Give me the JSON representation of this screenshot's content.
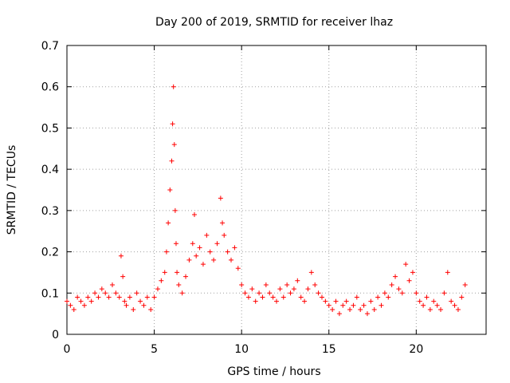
{
  "chart_data": {
    "type": "scatter",
    "title": "Day 200 of 2019, SRMTID for receiver lhaz",
    "xlabel": "GPS time / hours",
    "ylabel": "SRMTID / TECUs",
    "xlim": [
      0,
      24
    ],
    "ylim": [
      0,
      0.7
    ],
    "xticks": [
      "0",
      "5",
      "10",
      "15",
      "20"
    ],
    "yticks": [
      "0",
      "0.1",
      "0.2",
      "0.3",
      "0.4",
      "0.5",
      "0.6",
      "0.7"
    ],
    "grid": true,
    "marker": "+",
    "color": "#ff0000",
    "x": [
      0.0,
      0.2,
      0.4,
      0.6,
      0.8,
      1.0,
      1.2,
      1.4,
      1.6,
      1.8,
      2.0,
      2.2,
      2.4,
      2.6,
      2.8,
      3.0,
      3.1,
      3.2,
      3.3,
      3.4,
      3.6,
      3.8,
      4.0,
      4.2,
      4.4,
      4.6,
      4.8,
      5.0,
      5.2,
      5.4,
      5.6,
      5.7,
      5.8,
      5.9,
      6.0,
      6.05,
      6.1,
      6.15,
      6.2,
      6.25,
      6.3,
      6.4,
      6.6,
      6.8,
      7.0,
      7.2,
      7.3,
      7.4,
      7.6,
      7.8,
      8.0,
      8.2,
      8.4,
      8.6,
      8.8,
      8.9,
      9.0,
      9.2,
      9.4,
      9.6,
      9.8,
      10.0,
      10.2,
      10.4,
      10.6,
      10.8,
      11.0,
      11.2,
      11.4,
      11.6,
      11.8,
      12.0,
      12.2,
      12.4,
      12.6,
      12.8,
      13.0,
      13.2,
      13.4,
      13.6,
      13.8,
      14.0,
      14.2,
      14.4,
      14.6,
      14.8,
      15.0,
      15.2,
      15.4,
      15.6,
      15.8,
      16.0,
      16.2,
      16.4,
      16.6,
      16.8,
      17.0,
      17.2,
      17.4,
      17.6,
      17.8,
      18.0,
      18.2,
      18.4,
      18.6,
      18.8,
      19.0,
      19.2,
      19.4,
      19.6,
      19.8,
      20.0,
      20.2,
      20.4,
      20.6,
      20.8,
      21.0,
      21.2,
      21.4,
      21.6,
      21.8,
      22.0,
      22.2,
      22.4,
      22.6,
      22.8
    ],
    "y": [
      0.08,
      0.07,
      0.06,
      0.09,
      0.08,
      0.07,
      0.09,
      0.08,
      0.1,
      0.09,
      0.11,
      0.1,
      0.09,
      0.12,
      0.1,
      0.09,
      0.19,
      0.14,
      0.08,
      0.07,
      0.09,
      0.06,
      0.1,
      0.08,
      0.07,
      0.09,
      0.06,
      0.09,
      0.11,
      0.13,
      0.15,
      0.2,
      0.27,
      0.35,
      0.42,
      0.51,
      0.6,
      0.46,
      0.3,
      0.22,
      0.15,
      0.12,
      0.1,
      0.14,
      0.18,
      0.22,
      0.29,
      0.19,
      0.21,
      0.17,
      0.24,
      0.2,
      0.18,
      0.22,
      0.33,
      0.27,
      0.24,
      0.2,
      0.18,
      0.21,
      0.16,
      0.12,
      0.1,
      0.09,
      0.11,
      0.08,
      0.1,
      0.09,
      0.12,
      0.1,
      0.09,
      0.08,
      0.11,
      0.09,
      0.12,
      0.1,
      0.11,
      0.13,
      0.09,
      0.08,
      0.11,
      0.15,
      0.12,
      0.1,
      0.09,
      0.08,
      0.07,
      0.06,
      0.08,
      0.05,
      0.07,
      0.08,
      0.06,
      0.07,
      0.09,
      0.06,
      0.07,
      0.05,
      0.08,
      0.06,
      0.09,
      0.07,
      0.1,
      0.09,
      0.12,
      0.14,
      0.11,
      0.1,
      0.17,
      0.13,
      0.15,
      0.1,
      0.08,
      0.07,
      0.09,
      0.06,
      0.08,
      0.07,
      0.06,
      0.1,
      0.15,
      0.08,
      0.07,
      0.06,
      0.09,
      0.12
    ]
  }
}
